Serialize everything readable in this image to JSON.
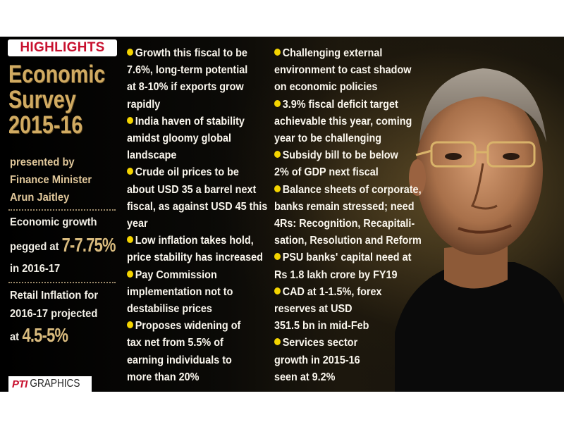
{
  "badge": "HIGHLIGHTS",
  "title_lines": [
    "Economic",
    "Survey",
    "2015-16"
  ],
  "presented_lines": [
    "presented by",
    "Finance Minister",
    "Arun Jaitley"
  ],
  "growth": {
    "line1": "Economic growth",
    "pre": "pegged at ",
    "value": "7-7.75%",
    "line3": "in 2016-17"
  },
  "inflation": {
    "line1": "Retail Inflation for",
    "line2": "2016-17 projected",
    "pre": "at ",
    "value": "4.5-5%"
  },
  "credit": {
    "logo": "PTI",
    "word": "GRAPHICS"
  },
  "col1": [
    [
      "Growth this fiscal to be",
      "7.6%, long-term potential",
      "at 8-10% if exports grow",
      "rapidly"
    ],
    [
      "India haven of stability",
      "amidst gloomy global",
      "landscape"
    ],
    [
      "Crude oil prices to be",
      "about USD 35 a barrel next",
      "fiscal, as against USD 45 this",
      "year"
    ],
    [
      "Low inflation takes hold,",
      "price stability has increased"
    ],
    [
      "Pay Commission",
      "implementation not to",
      "destabilise prices"
    ],
    [
      "Proposes widening of",
      "tax net from 5.5% of",
      "earning individuals to",
      "more than 20%"
    ]
  ],
  "col2": [
    [
      "Challenging external",
      "environment to cast shadow",
      "on economic policies"
    ],
    [
      "3.9% fiscal deficit target",
      "achievable this year, coming",
      "year to be challenging"
    ],
    [
      "Subsidy bill to be below",
      "2% of GDP next fiscal"
    ],
    [
      "Balance sheets of corporate,",
      "banks remain stressed; need",
      "4Rs: Recognition, Recapitali-",
      "sation, Resolution and Reform"
    ],
    [
      "PSU banks' capital need at",
      "Rs 1.8 lakh crore by FY19"
    ],
    [
      "CAD at 1-1.5%, forex",
      "reserves at USD",
      "351.5 bn in mid-Feb"
    ],
    [
      "Services sector",
      "growth in 2015-16",
      "seen at 9.2%"
    ]
  ],
  "colors": {
    "bullet": "#f4d400",
    "badge_text": "#c8102e",
    "title": "#d1ab62"
  }
}
